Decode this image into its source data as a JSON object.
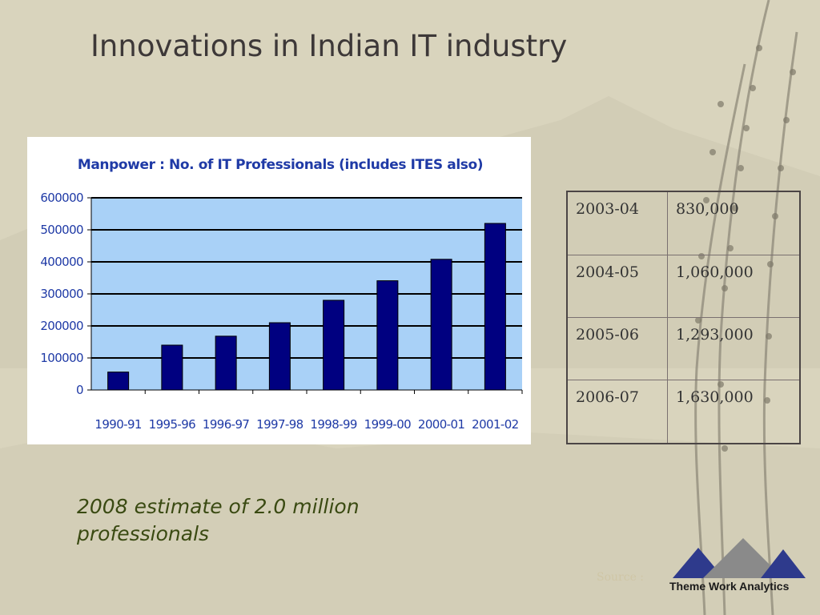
{
  "slide": {
    "title": "Innovations in Indian IT industry",
    "estimate_text": "2008 estimate of  2.0 million professionals",
    "source_note": "Source :"
  },
  "chart_data": {
    "type": "bar",
    "title": "Manpower : No. of IT Professionals (includes ITES also)",
    "categories": [
      "1990-91",
      "1995-96",
      "1996-97",
      "1997-98",
      "1998-99",
      "1999-00",
      "2000-01",
      "2001-02"
    ],
    "values": [
      56000,
      140000,
      168000,
      210000,
      280000,
      341000,
      408000,
      520000
    ],
    "ylim": [
      0,
      600000
    ],
    "yticks": [
      "600000",
      "500000",
      "400000",
      "300000",
      "200000",
      "100000",
      "0"
    ],
    "ytick_values": [
      600000,
      500000,
      400000,
      300000,
      200000,
      100000,
      0
    ],
    "grid": true,
    "legend": "none",
    "colors": {
      "bar": "#000080",
      "plot_bg": "#a9d1f7",
      "text": "#1f3aa6"
    }
  },
  "table": {
    "rows": [
      {
        "year": "2003-04",
        "value": "830,000"
      },
      {
        "year": "2004-05",
        "value": "1,060,000"
      },
      {
        "year": "2005-06",
        "value": "1,293,000"
      },
      {
        "year": "2006-07",
        "value": "1,630,000"
      }
    ]
  },
  "logo": {
    "text": "Theme Work Analytics",
    "colors": {
      "left": "#2e3a8c",
      "center": "#8a8a8a",
      "right": "#2e3a8c"
    }
  }
}
